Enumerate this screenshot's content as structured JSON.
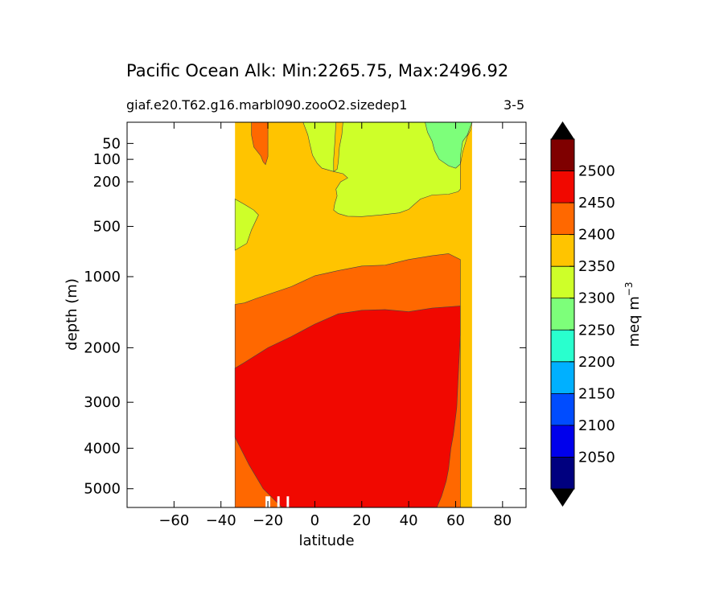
{
  "chart_data": {
    "type": "contour",
    "title": "Pacific Ocean Alk: Min:2265.75, Max:2496.92",
    "subtitle": "giaf.e20.T62.g16.marbl090.zooO2.sizedep1",
    "panel_label": "3-5",
    "xlabel": "latitude",
    "ylabel": "depth (m)",
    "xlim": [
      -80,
      90
    ],
    "ylim": [
      10,
      5500
    ],
    "y_scale": "sqrt",
    "y_inverted": true,
    "x_ticks": [
      -60,
      -40,
      -20,
      0,
      20,
      40,
      60,
      80
    ],
    "y_ticks": [
      50,
      100,
      200,
      500,
      1000,
      2000,
      3000,
      4000,
      5000
    ],
    "data_extent_lat": [
      -34,
      67
    ],
    "colorbar": {
      "label": "meq m",
      "label_exponent": "−3",
      "extend": "both",
      "boundaries": [
        2000,
        2050,
        2100,
        2150,
        2200,
        2250,
        2300,
        2350,
        2400,
        2450,
        2500,
        2550
      ],
      "tick_labels": [
        2050,
        2100,
        2150,
        2200,
        2250,
        2300,
        2350,
        2400,
        2450,
        2500
      ],
      "colors": [
        "#00007f",
        "#0000ec",
        "#004cff",
        "#00b0ff",
        "#29ffce",
        "#7dff7a",
        "#ceff29",
        "#ffc400",
        "#ff6800",
        "#f10800",
        "#7f0000"
      ],
      "under_color": "#000000",
      "over_color": "#000000"
    },
    "regions": [
      {
        "range": "2350-2400",
        "value": 2375,
        "color": "#ffc400",
        "shape": "background-lat-extent"
      },
      {
        "range": "2300-2350",
        "value": 2325,
        "color": "#ceff29",
        "shape": "upper-ocean-north"
      },
      {
        "range": "2300-2350",
        "value": 2325,
        "color": "#ceff29",
        "shape": "south-intermediate"
      },
      {
        "range": "2250-2300",
        "value": 2275,
        "color": "#7dff7a",
        "shape": "north-surface"
      },
      {
        "range": "2400-2450",
        "value": 2425,
        "color": "#ff6800",
        "shape": "deep-band"
      },
      {
        "range": "2450-2500",
        "value": 2475,
        "color": "#f10800",
        "shape": "deep-water"
      },
      {
        "range": "2400-2450",
        "value": 2425,
        "color": "#ff6800",
        "shape": "abyssal-south"
      },
      {
        "range": "2400-2450",
        "value": 2425,
        "color": "#ff6800",
        "shape": "surface-plume-south"
      },
      {
        "range": "2350-2400",
        "value": 2375,
        "color": "#ffc400",
        "shape": "surface-plume-north"
      }
    ]
  }
}
